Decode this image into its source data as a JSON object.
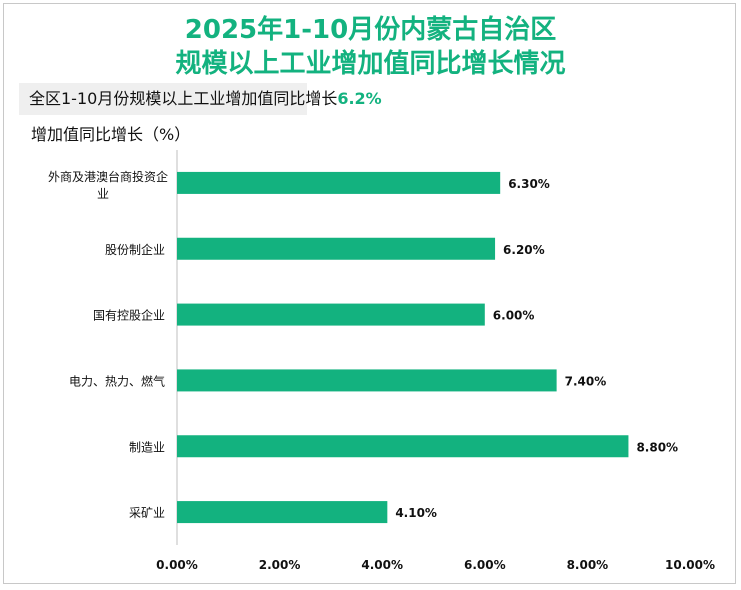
{
  "title_line1": "2025年1-10月份内蒙古自治区",
  "title_line2": "规模以上工业增加值同比增长情况",
  "summary": {
    "text": "全区1-10月份规模以上工业增加值同比增长",
    "value": "6.2%"
  },
  "colors": {
    "accent": "#13b27f",
    "bar": "#13b27f"
  },
  "chart_data": {
    "type": "bar",
    "orientation": "horizontal",
    "title": "2025年1-10月份内蒙古自治区规模以上工业增加值同比增长情况",
    "ylabel": "增加值同比增长（%）",
    "categories": [
      "外商及港澳台商投资企业",
      "股份制企业",
      "国有控股企业",
      "电力、热力、燃气",
      "制造业",
      "采矿业"
    ],
    "values": [
      6.3,
      6.2,
      6.0,
      7.4,
      8.8,
      4.1
    ],
    "data_labels": [
      "6.30%",
      "6.20%",
      "6.00%",
      "7.40%",
      "8.80%",
      "4.10%"
    ],
    "xlim": [
      0,
      10
    ],
    "xticks": [
      "0.00%",
      "2.00%",
      "4.00%",
      "6.00%",
      "8.00%",
      "10.00%"
    ],
    "grid": false
  }
}
